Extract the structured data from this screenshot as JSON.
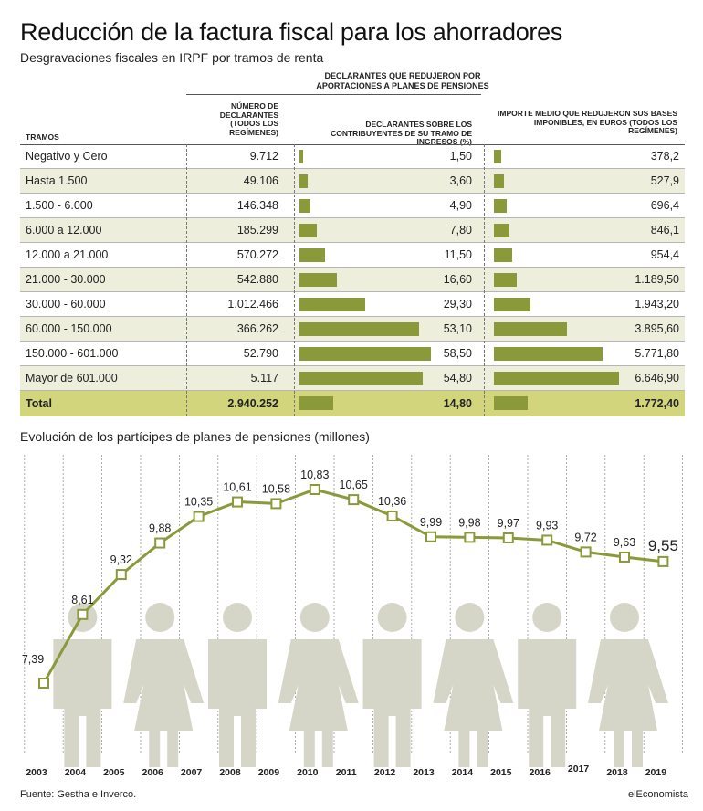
{
  "title": "Reducción de la factura fiscal para los ahorradores",
  "subtitle": "Desgravaciones fiscales en IRPF por tramos de renta",
  "table": {
    "group_header": "DECLARANTES QUE REDUJERON POR APORTACIONES A PLANES DE PENSIONES",
    "col_tramos": "TRAMOS",
    "col_numero": "NÚMERO DE DECLARANTES (TODOS LOS REGÍMENES)",
    "col_pct": "DECLARANTES SOBRE LOS CONTRIBUYENTES DE SU TRAMO DE INGRESOS (%)",
    "col_importe": "IMPORTE MEDIO QUE REDUJERON SUS BASES IMPONIBLES, EN EUROS (TODOS LOS REGÍMENES)",
    "rows": [
      {
        "tramo": "Negativo y Cero",
        "numero": "9.712",
        "pct_label": "1,50",
        "pct": 1.5,
        "importe_label": "378,2",
        "importe": 378.2
      },
      {
        "tramo": "Hasta 1.500",
        "numero": "49.106",
        "pct_label": "3,60",
        "pct": 3.6,
        "importe_label": "527,9",
        "importe": 527.9
      },
      {
        "tramo": "1.500 - 6.000",
        "numero": "146.348",
        "pct_label": "4,90",
        "pct": 4.9,
        "importe_label": "696,4",
        "importe": 696.4
      },
      {
        "tramo": "6.000 a 12.000",
        "numero": "185.299",
        "pct_label": "7,80",
        "pct": 7.8,
        "importe_label": "846,1",
        "importe": 846.1
      },
      {
        "tramo": "12.000 a 21.000",
        "numero": "570.272",
        "pct_label": "11,50",
        "pct": 11.5,
        "importe_label": "954,4",
        "importe": 954.4
      },
      {
        "tramo": "21.000 - 30.000",
        "numero": "542.880",
        "pct_label": "16,60",
        "pct": 16.6,
        "importe_label": "1.189,50",
        "importe": 1189.5
      },
      {
        "tramo": "30.000 - 60.000",
        "numero": "1.012.466",
        "pct_label": "29,30",
        "pct": 29.3,
        "importe_label": "1.943,20",
        "importe": 1943.2
      },
      {
        "tramo": "60.000 - 150.000",
        "numero": "366.262",
        "pct_label": "53,10",
        "pct": 53.1,
        "importe_label": "3.895,60",
        "importe": 3895.6
      },
      {
        "tramo": "150.000 - 601.000",
        "numero": "52.790",
        "pct_label": "58,50",
        "pct": 58.5,
        "importe_label": "5.771,80",
        "importe": 5771.8
      },
      {
        "tramo": "Mayor de 601.000",
        "numero": "5.117",
        "pct_label": "54,80",
        "pct": 54.8,
        "importe_label": "6.646,90",
        "importe": 6646.9
      }
    ],
    "total": {
      "tramo": "Total",
      "numero": "2.940.252",
      "pct_label": "14,80",
      "pct": 14.8,
      "importe_label": "1.772,40",
      "importe": 1772.4
    }
  },
  "chart_title": "Evolución de los partícipes de planes de pensiones (millones)",
  "chart_data": {
    "type": "line",
    "title": "Evolución de los partícipes de planes de pensiones (millones)",
    "x": [
      "2003",
      "2004",
      "2005",
      "2006",
      "2007",
      "2008",
      "2009",
      "2010",
      "2011",
      "2012",
      "2013",
      "2014",
      "2015",
      "2016",
      "2017",
      "2018",
      "2019"
    ],
    "values": [
      7.39,
      8.61,
      9.32,
      9.88,
      10.35,
      10.61,
      10.58,
      10.83,
      10.65,
      10.36,
      9.99,
      9.98,
      9.97,
      9.93,
      9.72,
      9.63,
      9.55
    ],
    "labels": [
      "7,39",
      "8,61",
      "9,32",
      "9,88",
      "10,35",
      "10,61",
      "10,58",
      "10,83",
      "10,65",
      "10,36",
      "9,99",
      "9,98",
      "9,97",
      "9,93",
      "9,72",
      "9,63",
      "9,55"
    ],
    "line_color": "#8a9a3b",
    "figure_color": "#d6d6c8"
  },
  "source": "Fuente: Gestha e Inverco.",
  "brand": "elEconomista"
}
